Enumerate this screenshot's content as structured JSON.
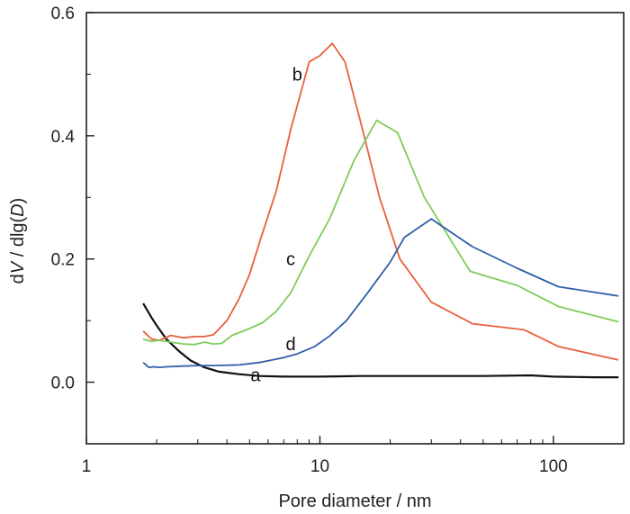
{
  "chart_data": {
    "type": "line",
    "xlabel": "Pore diameter / nm",
    "ylabel": {
      "prefix": "d",
      "v": "V",
      "mid": " / dlg(",
      "d": "D",
      "suffix": ")"
    },
    "x_scale": "log",
    "xlim": [
      1,
      200
    ],
    "ylim": [
      -0.1,
      0.6
    ],
    "x_ticks": [
      1,
      10,
      100
    ],
    "x_tick_labels": [
      "1",
      "10",
      "100"
    ],
    "y_ticks": [
      0.0,
      0.2,
      0.4,
      0.6
    ],
    "y_tick_labels": [
      "0.0",
      "0.2",
      "0.4",
      "0.6"
    ],
    "grid": false,
    "legend": "none",
    "series": [
      {
        "name": "a",
        "color": "#111111",
        "label_at": [
          5.3,
          0.012
        ],
        "x": [
          1.75,
          1.9,
          2.0,
          2.2,
          2.5,
          2.8,
          3.2,
          3.7,
          4.5,
          5.5,
          7,
          10,
          15,
          20,
          30,
          50,
          80,
          100,
          150,
          190
        ],
        "y": [
          0.128,
          0.105,
          0.092,
          0.07,
          0.05,
          0.035,
          0.024,
          0.017,
          0.013,
          0.01,
          0.009,
          0.009,
          0.01,
          0.01,
          0.01,
          0.01,
          0.011,
          0.009,
          0.008,
          0.008
        ]
      },
      {
        "name": "b",
        "color": "#e8603c",
        "label_at": [
          8.0,
          0.5
        ],
        "x": [
          1.75,
          1.9,
          2.05,
          2.3,
          2.6,
          2.9,
          3.2,
          3.5,
          4.0,
          4.5,
          5.0,
          5.6,
          6.5,
          7.5,
          9.0,
          10.0,
          11.3,
          12.8,
          15.0,
          18.0,
          22.0,
          30.0,
          45.0,
          75.0,
          105.0,
          190.0
        ],
        "y": [
          0.083,
          0.07,
          0.068,
          0.076,
          0.072,
          0.074,
          0.074,
          0.077,
          0.1,
          0.135,
          0.175,
          0.235,
          0.31,
          0.41,
          0.52,
          0.53,
          0.55,
          0.52,
          0.42,
          0.3,
          0.2,
          0.13,
          0.095,
          0.085,
          0.058,
          0.036
        ]
      },
      {
        "name": "c",
        "color": "#7fcc5c",
        "label_at": [
          7.5,
          0.2
        ],
        "x": [
          1.75,
          1.9,
          2.05,
          2.3,
          2.6,
          2.9,
          3.2,
          3.5,
          3.8,
          4.2,
          5.0,
          5.7,
          6.5,
          7.5,
          9.0,
          11.0,
          14.0,
          17.5,
          21.5,
          28.0,
          44.0,
          70.0,
          105.0,
          190.0
        ],
        "y": [
          0.07,
          0.066,
          0.068,
          0.065,
          0.062,
          0.061,
          0.065,
          0.062,
          0.063,
          0.076,
          0.087,
          0.097,
          0.115,
          0.145,
          0.205,
          0.265,
          0.36,
          0.425,
          0.405,
          0.3,
          0.18,
          0.157,
          0.123,
          0.098
        ]
      },
      {
        "name": "d",
        "color": "#2f5fa8",
        "label_at": [
          7.5,
          0.062
        ],
        "x": [
          1.75,
          1.85,
          1.95,
          2.05,
          2.2,
          2.5,
          3.0,
          3.5,
          4.5,
          5.5,
          7.0,
          8.0,
          9.5,
          11.0,
          13.0,
          16.0,
          20.0,
          23.0,
          30.0,
          45.0,
          70.0,
          105.0,
          190.0
        ],
        "y": [
          0.032,
          0.024,
          0.025,
          0.024,
          0.025,
          0.026,
          0.027,
          0.027,
          0.028,
          0.032,
          0.04,
          0.046,
          0.058,
          0.075,
          0.1,
          0.145,
          0.195,
          0.235,
          0.265,
          0.22,
          0.185,
          0.155,
          0.14
        ]
      }
    ]
  }
}
